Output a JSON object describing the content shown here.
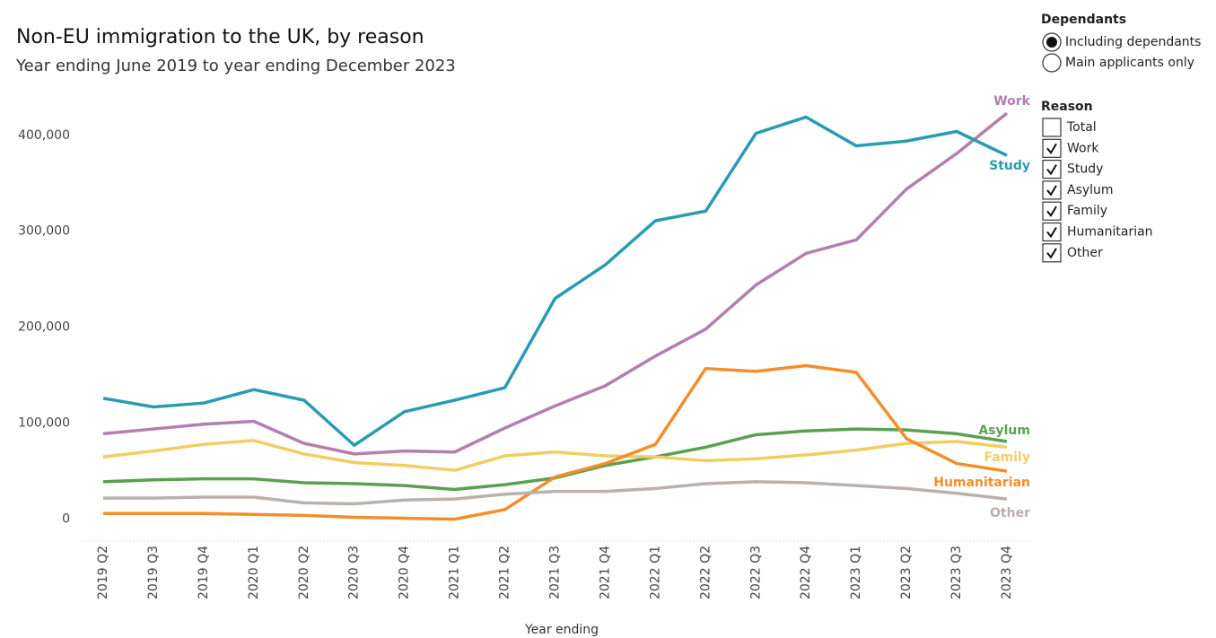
{
  "chart_data": {
    "type": "line",
    "title": "Non-EU immigration to the UK, by reason",
    "subtitle": "Year ending June 2019 to year ending December 2023",
    "x_label": "Year ending",
    "categories": [
      "2019 Q2",
      "2019 Q3",
      "2019 Q4",
      "2020 Q1",
      "2020 Q2",
      "2020 Q3",
      "2020 Q4",
      "2021 Q1",
      "2021 Q2",
      "2021 Q3",
      "2021 Q4",
      "2022 Q1",
      "2022 Q2",
      "2022 Q3",
      "2022 Q4",
      "2023 Q1",
      "2023 Q2",
      "2023 Q3",
      "2023 Q4"
    ],
    "series": [
      {
        "name": "Work",
        "color": "#b47eae",
        "values": [
          89000,
          94000,
          99000,
          102000,
          79000,
          68000,
          71000,
          70000,
          95000,
          118000,
          139000,
          170000,
          198000,
          244000,
          277000,
          291000,
          344000,
          381000,
          423000
        ]
      },
      {
        "name": "Study",
        "color": "#2a9bb3",
        "values": [
          126000,
          117000,
          121000,
          135000,
          124000,
          77000,
          112000,
          124000,
          137000,
          230000,
          265000,
          311000,
          321000,
          402000,
          419000,
          389000,
          394000,
          404000,
          379000
        ]
      },
      {
        "name": "Asylum",
        "color": "#59a14f",
        "values": [
          39000,
          41000,
          42000,
          42000,
          38000,
          37000,
          35000,
          31000,
          36000,
          43000,
          56000,
          65000,
          75000,
          88000,
          92000,
          94000,
          93000,
          89000,
          81000
        ]
      },
      {
        "name": "Family",
        "color": "#f1ce63",
        "values": [
          65000,
          71000,
          78000,
          82000,
          68000,
          59000,
          56000,
          51000,
          66000,
          70000,
          66000,
          65000,
          61000,
          63000,
          67000,
          72000,
          79000,
          81000,
          75000
        ]
      },
      {
        "name": "Humanitarian",
        "color": "#f28e2b",
        "values": [
          6000,
          6000,
          6000,
          5000,
          4000,
          2000,
          1000,
          0,
          10000,
          44000,
          58000,
          78000,
          157000,
          154000,
          160000,
          153000,
          84000,
          58000,
          50000
        ]
      },
      {
        "name": "Other",
        "color": "#bab0ac",
        "values": [
          22000,
          22000,
          23000,
          23000,
          17000,
          16000,
          20000,
          21000,
          26000,
          29000,
          29000,
          32000,
          37000,
          39000,
          38000,
          35000,
          32000,
          27000,
          21000
        ]
      }
    ],
    "ylim": [
      -20000,
      440000
    ],
    "yticks": [
      0,
      {
        "value": 100000,
        "label": "100,000"
      },
      {
        "value": 200000,
        "label": "200,000"
      },
      {
        "value": 300000,
        "label": "300,000"
      },
      {
        "value": 400000,
        "label": "400,000"
      }
    ],
    "grid": false
  },
  "controls": {
    "dependants": {
      "title": "Dependants",
      "options": [
        {
          "label": "Including dependants",
          "selected": true
        },
        {
          "label": "Main applicants only",
          "selected": false
        }
      ]
    },
    "reason": {
      "title": "Reason",
      "options": [
        {
          "label": "Total",
          "checked": false
        },
        {
          "label": "Work",
          "checked": true
        },
        {
          "label": "Study",
          "checked": true
        },
        {
          "label": "Asylum",
          "checked": true
        },
        {
          "label": "Family",
          "checked": true
        },
        {
          "label": "Humanitarian",
          "checked": true
        },
        {
          "label": "Other",
          "checked": true
        }
      ]
    }
  }
}
